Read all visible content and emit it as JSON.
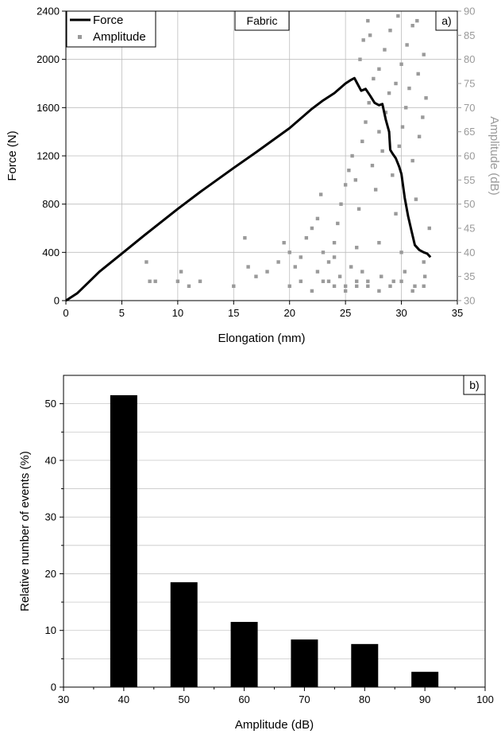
{
  "chart_data": [
    {
      "panel_label": "a)",
      "type": "line",
      "annotation": "Fabric",
      "xlabel": "Elongation (mm)",
      "ylabel": "Force (N)",
      "y2label": "Amplitude (dB)",
      "xlim": [
        0,
        35
      ],
      "ylim": [
        0,
        2400
      ],
      "y2lim": [
        30,
        90
      ],
      "xticks": [
        "0",
        "5",
        "10",
        "15",
        "20",
        "25",
        "30",
        "35"
      ],
      "yticks": [
        "0",
        "400",
        "800",
        "1200",
        "1600",
        "2000",
        "2400"
      ],
      "y2ticks": [
        "30",
        "35",
        "40",
        "45",
        "50",
        "55",
        "60",
        "65",
        "70",
        "75",
        "80",
        "85",
        "90"
      ],
      "grid": true,
      "legend_position": "top-left",
      "colors": {
        "force": "#000000",
        "amplitude": "#9a9a9a"
      },
      "series": [
        {
          "name": "Force",
          "type": "line",
          "axis": "left",
          "x": [
            0,
            1,
            2,
            3,
            5,
            7,
            10,
            12,
            15,
            17,
            20,
            22,
            23,
            24,
            25,
            25.5,
            25.8,
            26,
            26.4,
            26.8,
            27.2,
            27.6,
            28,
            28.3,
            28.6,
            28.9,
            29,
            29.2,
            29.5,
            29.8,
            30,
            30.3,
            30.6,
            30.9,
            31.2,
            31.6,
            32,
            32.3,
            32.6
          ],
          "y": [
            0,
            60,
            150,
            240,
            390,
            540,
            760,
            900,
            1100,
            1230,
            1430,
            1590,
            1660,
            1720,
            1800,
            1830,
            1845,
            1810,
            1740,
            1755,
            1700,
            1640,
            1620,
            1630,
            1500,
            1400,
            1250,
            1220,
            1180,
            1110,
            1050,
            850,
            700,
            580,
            460,
            420,
            400,
            390,
            360
          ]
        },
        {
          "name": "Amplitude",
          "type": "scatter",
          "axis": "right",
          "x": [
            7.2,
            7.5,
            8,
            10,
            10.3,
            11,
            12,
            15,
            16,
            16.3,
            17,
            18,
            19,
            19.5,
            20,
            20.5,
            21,
            21.5,
            22,
            22.5,
            22.8,
            23,
            23.5,
            24,
            24.3,
            24.6,
            25,
            25.3,
            25.6,
            25.9,
            26.2,
            26.5,
            26.8,
            27.1,
            27.4,
            27.7,
            28,
            28.3,
            28.6,
            28.9,
            29.2,
            29.5,
            29.8,
            30.1,
            30.4,
            30.7,
            31,
            31.3,
            31.6,
            31.9,
            32.2,
            32.5,
            26.3,
            26.6,
            27,
            27.5,
            28,
            28.5,
            29,
            29.5,
            30,
            30.5,
            31,
            31.5,
            32,
            22.5,
            23.5,
            24.5,
            25,
            25.5,
            26,
            26.5,
            27,
            28.2,
            29.3,
            30.3,
            31.2,
            32.1,
            20,
            21,
            22,
            23,
            24,
            25,
            26,
            27,
            28,
            29,
            30,
            31,
            32,
            24,
            26,
            28,
            30,
            32,
            27.2,
            29.7,
            31.4
          ],
          "y": [
            38,
            34,
            34,
            34,
            36,
            33,
            34,
            33,
            43,
            37,
            35,
            36,
            38,
            42,
            40,
            37,
            39,
            43,
            45,
            47,
            52,
            40,
            38,
            42,
            46,
            50,
            54,
            57,
            60,
            55,
            49,
            63,
            67,
            71,
            58,
            53,
            65,
            61,
            69,
            73,
            56,
            48,
            62,
            66,
            70,
            74,
            59,
            51,
            64,
            68,
            72,
            45,
            80,
            84,
            88,
            76,
            78,
            82,
            86,
            75,
            79,
            83,
            87,
            77,
            81,
            36,
            34,
            35,
            33,
            37,
            34,
            36,
            33,
            35,
            34,
            36,
            33,
            35,
            33,
            34,
            32,
            34,
            33,
            32,
            33,
            34,
            32,
            33,
            34,
            32,
            33,
            39,
            41,
            42,
            40,
            38,
            85,
            89,
            88
          ]
        }
      ]
    },
    {
      "panel_label": "b)",
      "type": "bar",
      "xlabel": "Amplitude (dB)",
      "ylabel": "Relative number of events (%)",
      "xlim": [
        30,
        100
      ],
      "ylim": [
        0,
        55
      ],
      "xticks": [
        "30",
        "40",
        "50",
        "60",
        "70",
        "80",
        "90",
        "100"
      ],
      "yticks": [
        "0",
        "10",
        "20",
        "30",
        "40",
        "50"
      ],
      "grid": true,
      "colors": {
        "bar": "#000000"
      },
      "categories": [
        40,
        50,
        60,
        70,
        80,
        90
      ],
      "values": [
        51.5,
        18.5,
        11.5,
        8.4,
        7.6,
        2.7
      ]
    }
  ]
}
